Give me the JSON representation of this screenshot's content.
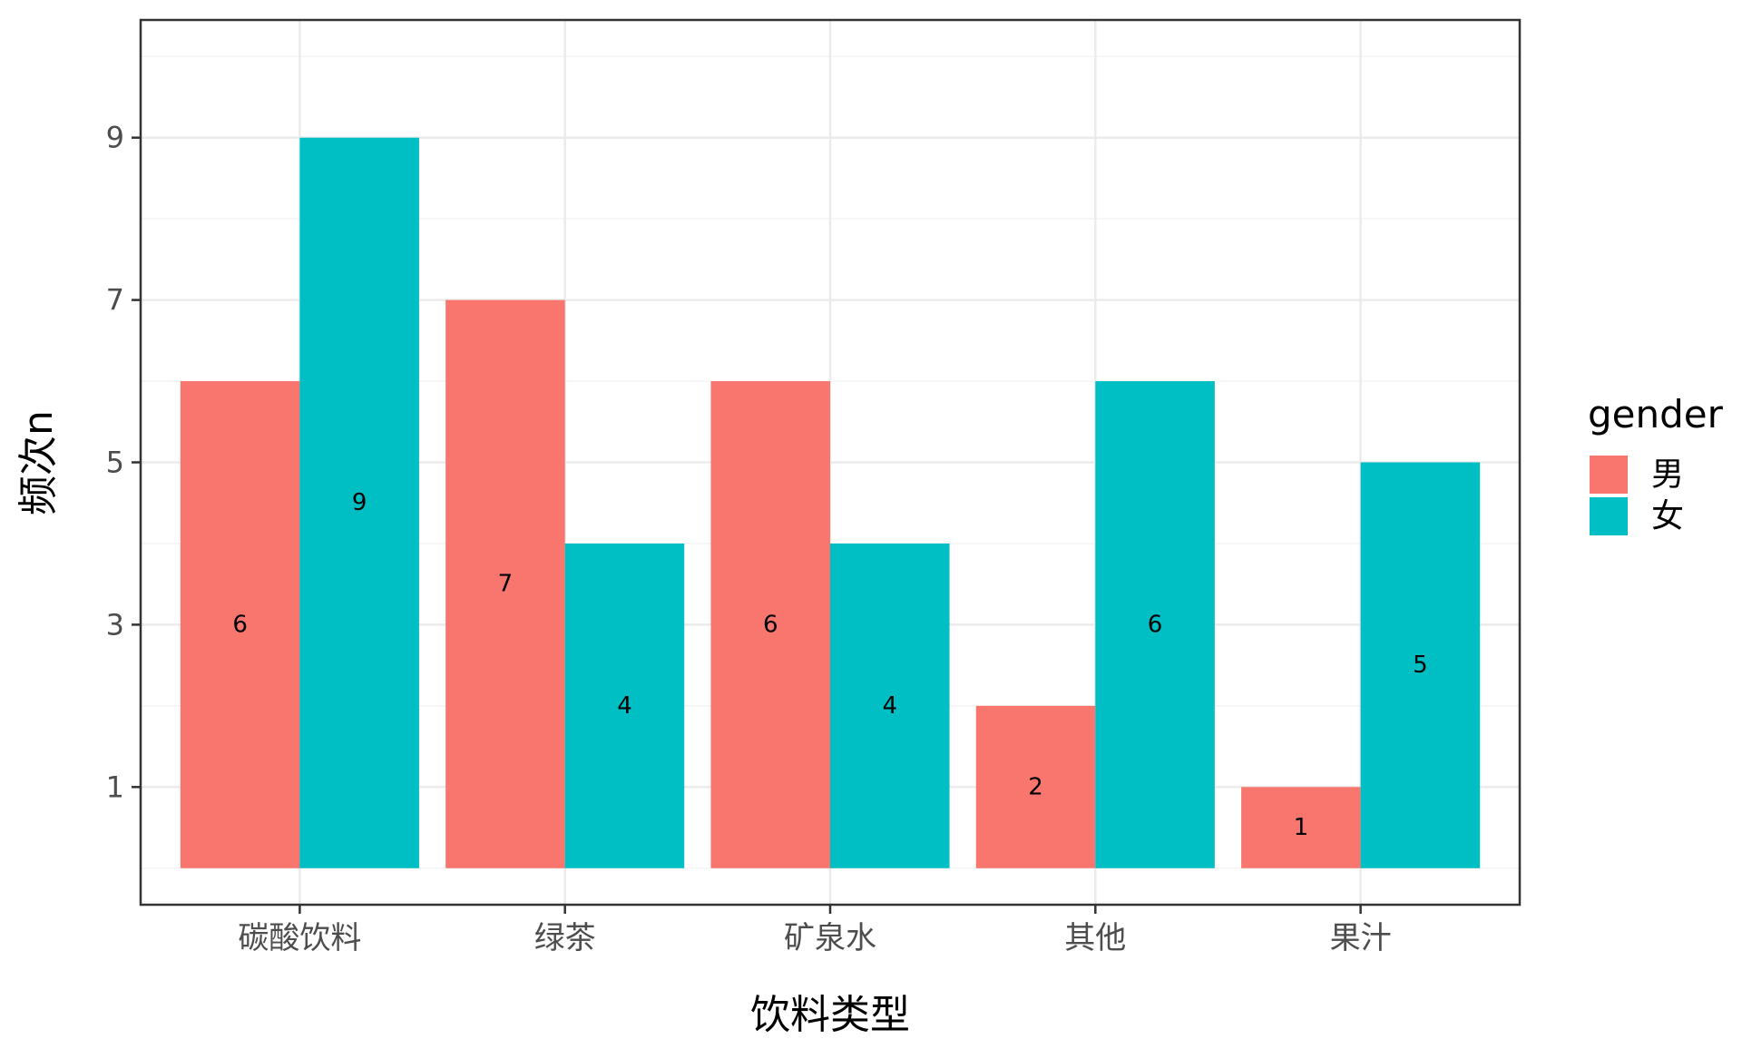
{
  "chart_data": {
    "type": "bar",
    "categories": [
      "碳酸饮料",
      "绿茶",
      "矿泉水",
      "其他",
      "果汁"
    ],
    "series": [
      {
        "name": "男",
        "color": "#F8766D",
        "values": [
          6,
          7,
          6,
          2,
          1
        ]
      },
      {
        "name": "女",
        "color": "#00BFC4",
        "values": [
          9,
          4,
          4,
          6,
          5
        ]
      }
    ],
    "xlabel": "饮料类型",
    "ylabel": "频次n",
    "ylim": [
      -0.45,
      10.45
    ],
    "yticks": [
      1,
      3,
      5,
      7,
      9
    ],
    "grid": true,
    "legend": {
      "title": "gender",
      "position": "right"
    },
    "data_labels": "value at half bar height",
    "theme": "bw"
  }
}
